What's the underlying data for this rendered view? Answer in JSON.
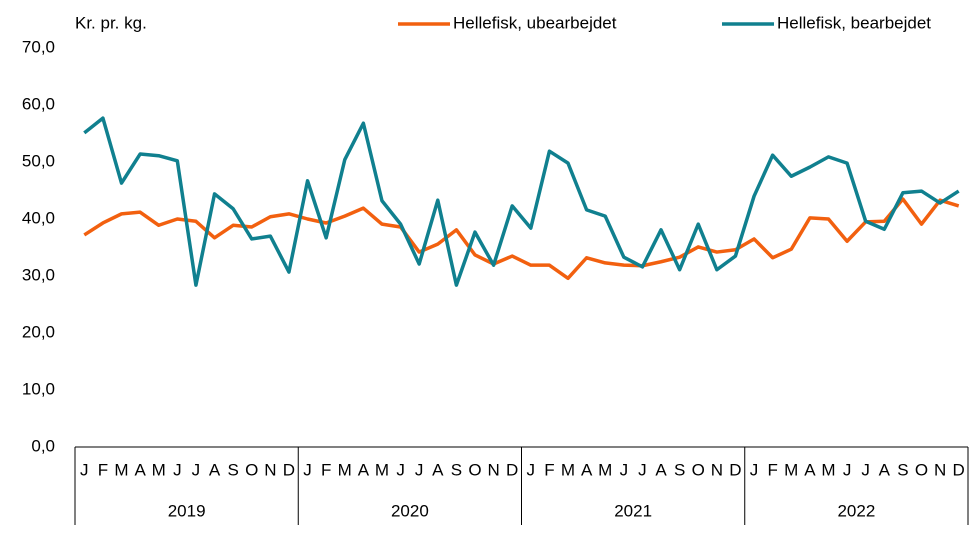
{
  "chart_data": {
    "type": "line",
    "y_label": "Kr. pr. kg.",
    "categories": [
      "J",
      "F",
      "M",
      "A",
      "M",
      "J",
      "J",
      "A",
      "S",
      "O",
      "N",
      "D",
      "J",
      "F",
      "M",
      "A",
      "M",
      "J",
      "J",
      "A",
      "S",
      "O",
      "N",
      "D",
      "J",
      "F",
      "M",
      "A",
      "M",
      "J",
      "J",
      "A",
      "S",
      "O",
      "N",
      "D",
      "J",
      "F",
      "M",
      "A",
      "M",
      "J",
      "J",
      "A",
      "S",
      "O",
      "N",
      "D"
    ],
    "groups": [
      "2019",
      "2020",
      "2021",
      "2022"
    ],
    "series": [
      {
        "name": "Hellefisk, ubearbejdet",
        "color": "#f2600f",
        "values": [
          37.2,
          39.3,
          40.9,
          41.2,
          38.9,
          40.0,
          39.6,
          36.7,
          38.9,
          38.6,
          40.4,
          40.9,
          40.0,
          39.3,
          40.5,
          41.9,
          39.1,
          38.6,
          34.2,
          35.6,
          38.1,
          33.7,
          32.1,
          33.5,
          31.9,
          31.9,
          29.6,
          33.2,
          32.3,
          31.9,
          31.8,
          32.5,
          33.3,
          35.1,
          34.2,
          34.6,
          36.5,
          33.2,
          34.7,
          40.2,
          40.0,
          36.1,
          39.5,
          39.6,
          43.5,
          39.1,
          43.3,
          42.3
        ]
      },
      {
        "name": "Hellefisk, bearbejdet",
        "color": "#10808f",
        "values": [
          55.1,
          57.7,
          46.3,
          51.4,
          51.1,
          50.2,
          28.4,
          44.4,
          41.8,
          36.5,
          37.0,
          30.7,
          46.7,
          36.7,
          50.4,
          56.8,
          43.2,
          39.1,
          32.1,
          43.3,
          28.4,
          37.7,
          31.9,
          42.3,
          38.4,
          51.9,
          49.8,
          41.6,
          40.5,
          33.3,
          31.6,
          38.1,
          31.1,
          39.1,
          31.1,
          33.5,
          44.0,
          51.2,
          47.5,
          49.1,
          50.9,
          49.8,
          39.6,
          38.2,
          44.6,
          44.9,
          42.8,
          44.9
        ]
      }
    ],
    "ylim": [
      0,
      70
    ],
    "yticks": [
      {
        "value": 0,
        "label": "0,0"
      },
      {
        "value": 10,
        "label": "10,0"
      },
      {
        "value": 20,
        "label": "20,0"
      },
      {
        "value": 30,
        "label": "30,0"
      },
      {
        "value": 40,
        "label": "40,0"
      },
      {
        "value": 50,
        "label": "50,0"
      },
      {
        "value": 60,
        "label": "60,0"
      },
      {
        "value": 70,
        "label": "70,0"
      }
    ],
    "grid": false,
    "legend": "top-right"
  }
}
